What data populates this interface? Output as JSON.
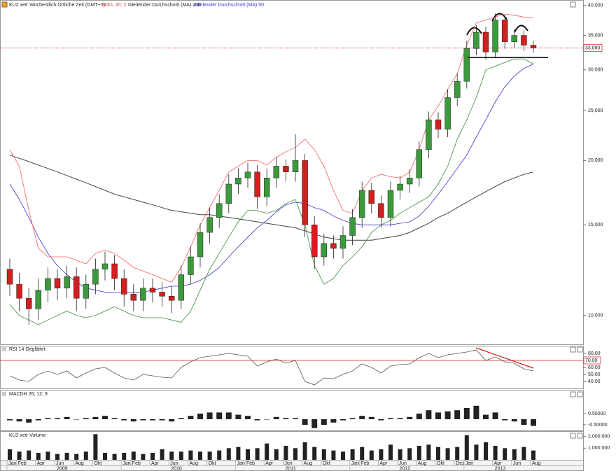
{
  "chart_data": {
    "type": "candlestick",
    "title": "KU2 xetr Wöchentlich Örtliche Zeit (GMT+1)",
    "log_scale": true,
    "up_color": "#3c9a3c",
    "down_color": "#d02020",
    "categories": [
      "Jan",
      "Feb",
      null,
      "Apr",
      null,
      "Jun",
      null,
      "Aug",
      null,
      "Okt",
      null,
      null,
      "Jan",
      "Feb",
      null,
      "Apr",
      null,
      "Jun",
      null,
      "Aug",
      null,
      "Okt",
      null,
      null,
      "Jan",
      "Feb",
      null,
      "Apr",
      null,
      "Jun",
      null,
      "Aug",
      null,
      "Okt",
      null,
      null,
      "Jan",
      "Feb",
      null,
      "Apr",
      null,
      "Jun",
      null,
      "Aug",
      null,
      "Okt",
      null,
      "Dez",
      "Jan",
      null,
      null,
      "Apr",
      null,
      "Jun",
      null,
      "Aug"
    ],
    "years": [
      "2009",
      "2010",
      "2011",
      "2012",
      "2013"
    ],
    "open": [
      12.3,
      11.5,
      10.8,
      10.3,
      11.2,
      11.8,
      11.3,
      11.9,
      10.8,
      11.5,
      12.3,
      12.6,
      11.8,
      11.0,
      10.7,
      11.3,
      11.1,
      10.9,
      10.7,
      12.0,
      13.0,
      14.5,
      15.5,
      16.5,
      18.0,
      18.5,
      19.0,
      17.0,
      18.5,
      19.5,
      19.0,
      20.0,
      15.0,
      13.0,
      13.8,
      13.5,
      14.3,
      15.5,
      17.5,
      16.5,
      15.5,
      17.5,
      18.0,
      18.5,
      21.0,
      24.0,
      23.0,
      26.5,
      28.5,
      33.0,
      35.5,
      32.5,
      37.5,
      34.0,
      35.0,
      33.5
    ],
    "high": [
      12.9,
      12.1,
      11.3,
      11.8,
      12.4,
      12.3,
      12.5,
      12.4,
      12.0,
      12.9,
      13.3,
      13.1,
      12.3,
      11.5,
      11.8,
      11.8,
      11.6,
      11.4,
      12.5,
      13.6,
      15.1,
      16.2,
      17.2,
      18.8,
      19.3,
      19.8,
      19.6,
      19.3,
      20.3,
      20.1,
      22.5,
      20.6,
      15.6,
      14.4,
      14.3,
      14.9,
      16.1,
      18.2,
      18.1,
      17.1,
      18.2,
      18.7,
      19.2,
      21.8,
      24.9,
      24.8,
      27.5,
      29.5,
      34.2,
      36.6,
      36.4,
      38.6,
      38.3,
      36.0,
      35.8,
      34.2
    ],
    "low": [
      10.9,
      10.2,
      9.6,
      9.8,
      10.6,
      10.7,
      10.8,
      10.2,
      10.3,
      11.0,
      11.7,
      11.2,
      10.4,
      10.2,
      10.2,
      10.6,
      10.4,
      10.1,
      10.3,
      11.5,
      12.4,
      13.8,
      14.8,
      15.8,
      17.2,
      17.7,
      16.1,
      16.3,
      17.7,
      18.2,
      18.2,
      14.2,
      12.3,
      12.5,
      12.9,
      12.9,
      13.7,
      14.8,
      15.8,
      14.8,
      14.9,
      16.8,
      17.3,
      17.8,
      20.2,
      22.1,
      22.2,
      25.5,
      27.6,
      32.0,
      31.4,
      31.6,
      33.0,
      33.1,
      32.6,
      32.4
    ],
    "close": [
      11.5,
      10.8,
      10.3,
      11.2,
      11.8,
      11.3,
      11.9,
      10.8,
      11.5,
      12.3,
      12.6,
      11.8,
      11.0,
      10.7,
      11.3,
      11.1,
      10.9,
      10.7,
      12.0,
      13.0,
      14.5,
      15.5,
      16.5,
      18.0,
      18.5,
      19.0,
      17.0,
      18.5,
      19.5,
      19.0,
      20.0,
      15.0,
      13.0,
      13.8,
      13.5,
      14.3,
      15.5,
      17.5,
      16.5,
      15.5,
      17.5,
      18.0,
      18.5,
      21.0,
      24.0,
      23.0,
      26.5,
      28.5,
      33.0,
      35.5,
      32.5,
      37.5,
      34.0,
      35.0,
      33.5,
      33.08
    ],
    "boll": {
      "name": "BOLL 20; 2",
      "color": "#f06060",
      "lower_color": "#3a8a3a",
      "upper": [
        21.0,
        19.5,
        16.0,
        13.5,
        13.0,
        13.0,
        13.0,
        12.8,
        12.6,
        13.2,
        13.4,
        13.2,
        12.8,
        12.4,
        12.2,
        12.0,
        11.8,
        11.6,
        12.4,
        13.6,
        15.0,
        16.2,
        17.5,
        19.0,
        19.5,
        20.0,
        20.0,
        19.6,
        20.3,
        20.8,
        21.2,
        22.0,
        21.0,
        19.5,
        17.5,
        16.0,
        15.8,
        17.5,
        18.5,
        18.8,
        18.6,
        18.5,
        19.0,
        21.0,
        24.0,
        25.5,
        27.5,
        29.5,
        33.5,
        37.0,
        37.5,
        38.0,
        38.5,
        38.3,
        38.0,
        37.8
      ],
      "lower": [
        10.5,
        10.0,
        9.8,
        9.6,
        9.8,
        10.0,
        10.2,
        10.0,
        9.9,
        10.0,
        10.2,
        10.4,
        10.2,
        10.0,
        9.9,
        9.9,
        9.9,
        9.8,
        9.7,
        10.2,
        11.2,
        12.3,
        13.2,
        14.2,
        15.2,
        16.0,
        16.0,
        15.8,
        16.0,
        16.5,
        16.8,
        15.0,
        12.5,
        11.5,
        11.8,
        12.5,
        13.0,
        13.6,
        14.5,
        15.0,
        15.3,
        15.8,
        16.2,
        16.6,
        17.0,
        18.0,
        19.5,
        22.0,
        24.0,
        26.5,
        30.0,
        30.5,
        31.0,
        31.5,
        31.5,
        30.8
      ]
    },
    "ma200": {
      "name": "Gleitender Durchschnitt (MA) 200",
      "color": "#444444",
      "values": [
        20.5,
        20.2,
        19.9,
        19.6,
        19.3,
        19.0,
        18.7,
        18.4,
        18.1,
        17.8,
        17.5,
        17.2,
        17.0,
        16.8,
        16.6,
        16.4,
        16.2,
        16.0,
        15.9,
        15.8,
        15.7,
        15.7,
        15.6,
        15.5,
        15.4,
        15.3,
        15.2,
        15.1,
        15.0,
        14.9,
        14.8,
        14.6,
        14.4,
        14.2,
        14.1,
        14.0,
        14.0,
        14.0,
        14.0,
        14.1,
        14.2,
        14.3,
        14.5,
        14.8,
        15.1,
        15.5,
        15.8,
        16.2,
        16.6,
        17.0,
        17.4,
        17.8,
        18.2,
        18.5,
        18.8,
        19.0
      ]
    },
    "ma50": {
      "name": "Gleitender Durchschnitt (MA) 50",
      "color": "#3838d0",
      "values": [
        18.0,
        16.8,
        15.5,
        14.2,
        13.2,
        12.5,
        12.0,
        11.6,
        11.3,
        11.2,
        11.1,
        11.1,
        11.1,
        11.1,
        11.1,
        11.2,
        11.3,
        11.4,
        11.4,
        11.5,
        11.7,
        12.0,
        12.4,
        13.0,
        13.6,
        14.2,
        14.8,
        15.3,
        15.9,
        16.4,
        16.6,
        16.5,
        16.2,
        16.0,
        15.6,
        15.3,
        15.1,
        15.0,
        15.0,
        15.0,
        15.0,
        15.1,
        15.2,
        15.6,
        16.3,
        17.2,
        18.2,
        19.3,
        20.5,
        22.2,
        24.0,
        26.0,
        27.8,
        29.2,
        30.2,
        30.8
      ]
    },
    "last": {
      "value": 33.08,
      "label": "33,080"
    },
    "neckline": 31.7,
    "ylim": [
      8.79,
      41.0
    ],
    "yticks": [
      {
        "value": 40,
        "label": "40,000"
      },
      {
        "value": 35,
        "label": "35,000"
      },
      {
        "value": 30,
        "label": "30,000"
      },
      {
        "value": 25,
        "label": "25,000"
      },
      {
        "value": 20,
        "label": "20,000"
      },
      {
        "value": 15,
        "label": "15,000"
      },
      {
        "value": 10,
        "label": "10,000"
      }
    ],
    "rsi": {
      "title": "RSI 14 Geglättet",
      "color": "#555555",
      "values": [
        48,
        42,
        40,
        50,
        55,
        50,
        55,
        45,
        52,
        58,
        60,
        52,
        45,
        42,
        50,
        48,
        46,
        45,
        60,
        68,
        74,
        76,
        78,
        80,
        78,
        76,
        62,
        68,
        72,
        66,
        70,
        40,
        35,
        45,
        44,
        50,
        55,
        65,
        60,
        52,
        62,
        64,
        65,
        74,
        80,
        74,
        78,
        80,
        82,
        85,
        70,
        75,
        68,
        66,
        58,
        55
      ],
      "ylim": [
        30,
        90
      ],
      "yticks": [
        {
          "value": 80,
          "label": "80.00"
        },
        {
          "value": 60,
          "label": "60.00"
        },
        {
          "value": 50,
          "label": "50.00"
        },
        {
          "value": 40,
          "label": "40.00"
        }
      ],
      "level": {
        "value": 70,
        "label": "70.00"
      }
    },
    "macd": {
      "title": "MACDH 26; 12; 9",
      "values": [
        -0.1,
        -0.2,
        -0.3,
        -0.1,
        0.1,
        0.1,
        0.2,
        0.0,
        0.1,
        0.2,
        0.3,
        0.1,
        -0.1,
        -0.2,
        -0.1,
        -0.1,
        -0.1,
        -0.2,
        0.1,
        0.3,
        0.5,
        0.6,
        0.6,
        0.6,
        0.4,
        0.3,
        -0.1,
        0.0,
        0.2,
        0.1,
        0.1,
        -0.5,
        -0.8,
        -0.5,
        -0.3,
        -0.1,
        0.1,
        0.3,
        0.2,
        -0.1,
        0.1,
        0.1,
        0.2,
        0.5,
        0.8,
        0.6,
        0.7,
        0.8,
        1.0,
        1.2,
        0.4,
        0.6,
        -0.1,
        -0.2,
        -0.5,
        -0.6
      ],
      "ylim": [
        -1.0,
        2.56
      ],
      "yticks": [
        {
          "value": 0.5,
          "label": "0.50000"
        },
        {
          "value": -0.5,
          "label": "-0.50000"
        }
      ]
    },
    "volume": {
      "title": "KU2 xetr Volume",
      "values": [
        900000,
        700000,
        800000,
        600000,
        700000,
        500000,
        600000,
        500000,
        700000,
        2200000,
        600000,
        500000,
        600000,
        700000,
        500000,
        600000,
        900000,
        700000,
        700000,
        800000,
        700000,
        700000,
        800000,
        1000000,
        1100000,
        900000,
        1000000,
        1400000,
        900000,
        1200000,
        1000000,
        1500000,
        1100000,
        900000,
        800000,
        700000,
        900000,
        1100000,
        800000,
        900000,
        1300000,
        900000,
        1000000,
        1200000,
        1300000,
        1100000,
        1000000,
        1100000,
        2100000,
        1300000,
        1500000,
        1200000,
        1000000,
        900000,
        1100000,
        800000
      ],
      "ylim": [
        0,
        2400000
      ],
      "yticks": [
        {
          "value": 2000000,
          "label": "2.000.000"
        },
        {
          "value": 1000000,
          "label": "1.000.000"
        }
      ]
    }
  }
}
